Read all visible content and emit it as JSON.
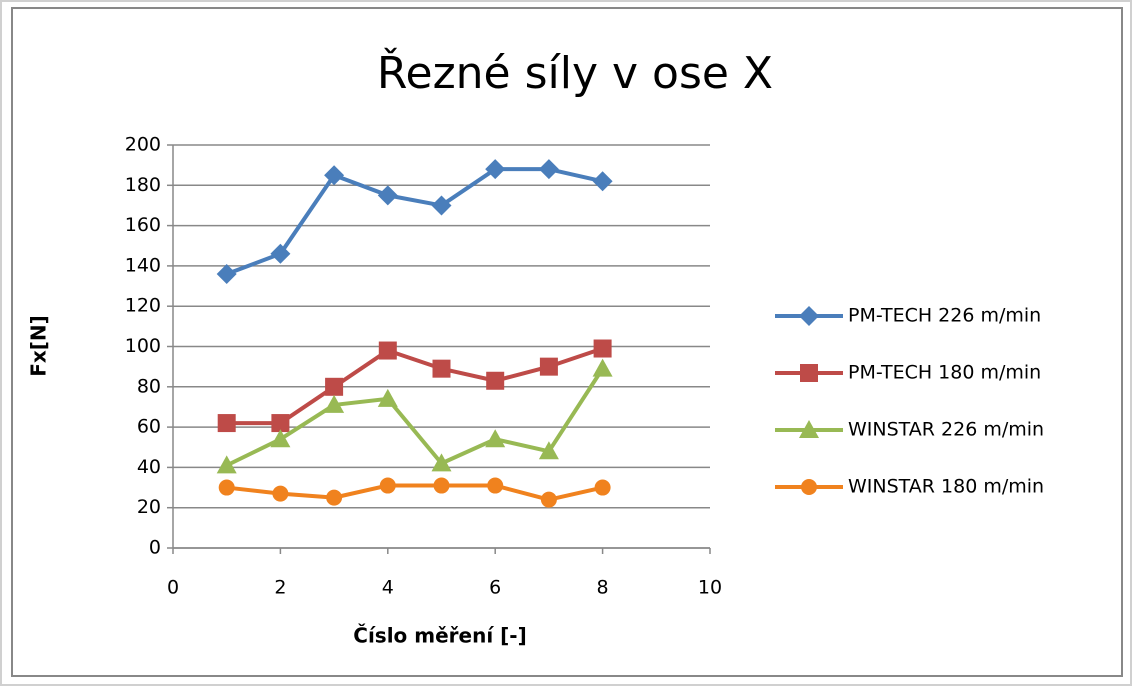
{
  "chart_data": {
    "type": "line",
    "title": "Řezné síly v ose X",
    "x_label": "Číslo měření [-]",
    "y_label": "Fx[N]",
    "x": [
      1,
      2,
      3,
      4,
      5,
      6,
      7,
      8
    ],
    "series": [
      {
        "name": "PM-TECH 226 m/min",
        "color": "#4a7ebb",
        "marker": "diamond",
        "values": [
          136,
          146,
          185,
          175,
          170,
          188,
          188,
          182
        ]
      },
      {
        "name": "PM-TECH 180 m/min",
        "color": "#be4b48",
        "marker": "square",
        "values": [
          62,
          62,
          80,
          98,
          89,
          83,
          90,
          99
        ]
      },
      {
        "name": "WINSTAR 226 m/min",
        "color": "#98b954",
        "marker": "triangle",
        "values": [
          41,
          54,
          71,
          74,
          42,
          54,
          48,
          89
        ]
      },
      {
        "name": "WINSTAR 180 m/min",
        "color": "#f0821e",
        "marker": "circle",
        "values": [
          30,
          27,
          25,
          31,
          31,
          31,
          24,
          30
        ]
      }
    ],
    "xlim": [
      0,
      10
    ],
    "xticks": [
      0,
      2,
      4,
      6,
      8,
      10
    ],
    "ylim": [
      0,
      200
    ],
    "yticks": [
      0,
      20,
      40,
      60,
      80,
      100,
      120,
      140,
      160,
      180,
      200
    ],
    "grid": true,
    "legend": "right"
  }
}
